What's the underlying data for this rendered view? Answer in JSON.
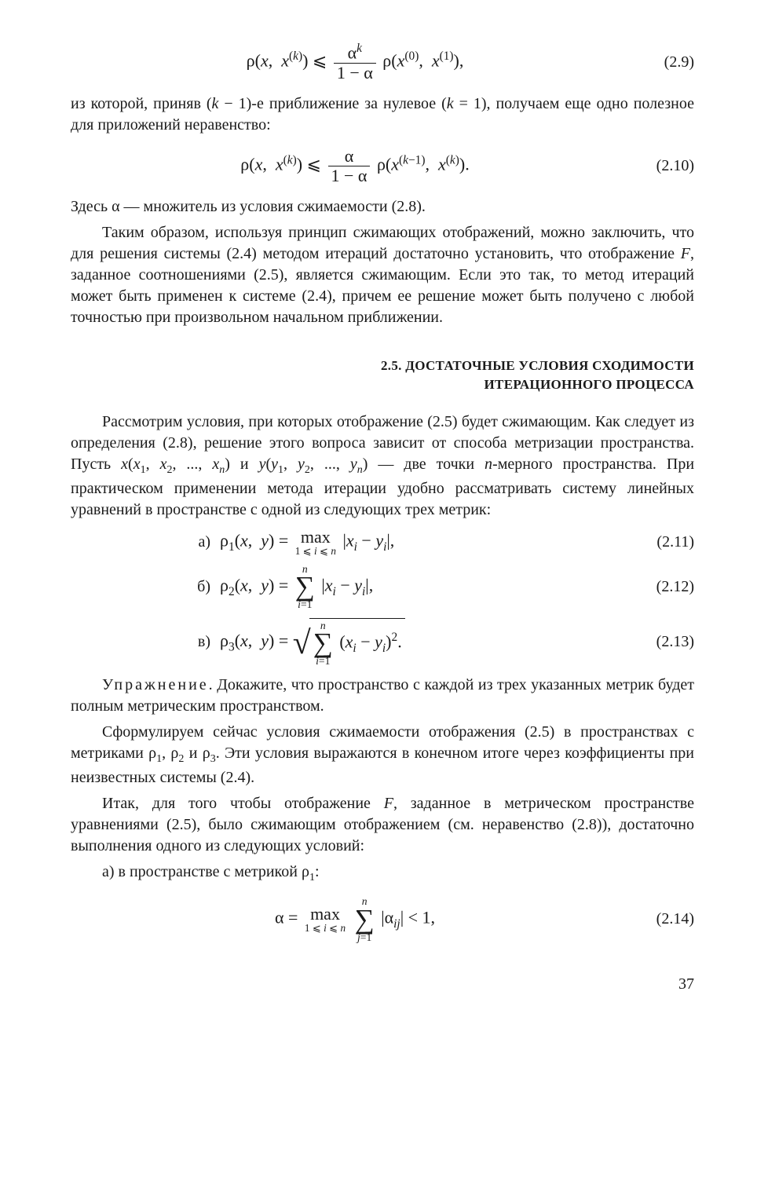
{
  "eq29": {
    "formula_html": "ρ(<span class='italic'>x</span>,&nbsp; <span class='italic'>x</span><span class='sup'>(<span class='italic'>k</span>)</span>) ⩽ <span class='frac'><span class='frac-num'>α<span class='sup italic'>k</span></span><span class='frac-den'>1 − α</span></span> ρ(<span class='italic'>x</span><span class='sup'>(0)</span>,&nbsp; <span class='italic'>x</span><span class='sup'>(1)</span>),",
    "number": "(2.9)"
  },
  "p1": "из которой, приняв (<span class='italic'>k</span> − 1)-е приближение за нулевое (<span class='italic'>k</span> = 1), получаем еще одно полезное для приложений неравенство:",
  "eq210": {
    "formula_html": "ρ(<span class='italic'>x</span>,&nbsp; <span class='italic'>x</span><span class='sup'>(<span class='italic'>k</span>)</span>) ⩽ <span class='frac'><span class='frac-num'>α</span><span class='frac-den'>1 − α</span></span> ρ(<span class='italic'>x</span><span class='sup'>(<span class='italic'>k</span>−1)</span>,&nbsp; <span class='italic'>x</span><span class='sup'>(<span class='italic'>k</span>)</span>).",
    "number": "(2.10)"
  },
  "p2": "Здесь α — множитель из условия сжимаемости (2.8).",
  "p3": "Таким образом, используя принцип сжимающих отображений, можно заключить, что для решения системы (2.4) методом итераций достаточно установить, что отображение <span class='italic'>F</span>, заданное соотношениями (2.5), является сжимающим. Если это так, то метод итераций может быть применен к системе (2.4), причем ее решение может быть получено с любой точностью при произвольном начальном приближении.",
  "heading": "2.5. ДОСТАТОЧНЫЕ УСЛОВИЯ СХОДИМОСТИ<br>ИТЕРАЦИОННОГО ПРОЦЕССА",
  "p4": "Рассмотрим условия, при которых отображение (2.5) будет сжимающим. Как следует из определения (2.8), решение этого вопроса зависит от способа метризации пространства. Пусть <span class='italic'>x</span>(<span class='italic'>x</span><span class='sub'>1</span>, <span class='italic'>x</span><span class='sub'>2</span>, ..., <span class='italic'>x</span><span class='sub italic'>n</span>) и <span class='italic'>y</span>(<span class='italic'>y</span><span class='sub'>1</span>, <span class='italic'>y</span><span class='sub'>2</span>, ..., <span class='italic'>y</span><span class='sub italic'>n</span>) — две точки <span class='italic'>n</span>-мерного пространства. При практическом применении метода итерации удобно рассматривать систему линейных уравнений в пространстве с одной из следующих трех метрик:",
  "metric_a": {
    "label": "а)",
    "formula_html": "ρ<span class='sub'>1</span>(<span class='italic'>x</span>,&nbsp; <span class='italic'>y</span>) = <span class='max-wrap'><span class='max-sym'>max</span><span class='max-sub'>1 ⩽ <span class='italic'>i</span> ⩽ <span class='italic'>n</span></span></span> |<span class='italic'>x</span><span class='sub italic'>i</span> − <span class='italic'>y</span><span class='sub italic'>i</span>|,",
    "number": "(2.11)"
  },
  "metric_b": {
    "label": "б)",
    "formula_html": "ρ<span class='sub'>2</span>(<span class='italic'>x</span>,&nbsp; <span class='italic'>y</span>) = <span class='sum-wrap'><span class='sum-top italic'>n</span><span class='sum-sym'>∑</span><span class='sum-bot'><span class='italic'>i</span>=1</span></span> |<span class='italic'>x</span><span class='sub italic'>i</span> − <span class='italic'>y</span><span class='sub italic'>i</span>|,",
    "number": "(2.12)"
  },
  "metric_c": {
    "label": "в)",
    "formula_html": "ρ<span class='sub'>3</span>(<span class='italic'>x</span>,&nbsp; <span class='italic'>y</span>) = <span class='radical'>√</span><span class='sqrt-wrap'><span class='sum-wrap'><span class='sum-top italic'>n</span><span class='sum-sym'>∑</span><span class='sum-bot'><span class='italic'>i</span>=1</span></span> (<span class='italic'>x</span><span class='sub italic'>i</span> − <span class='italic'>y</span><span class='sub italic'>i</span>)<span class='sup'>2</span>.</span>",
    "number": "(2.13)"
  },
  "p5": "<span class='spaced'>Упражнение</span>. Докажите, что пространство с каждой из трех указанных метрик будет полным метрическим пространством.",
  "p6": "Сформулируем сейчас условия сжимаемости отображения (2.5) в пространствах с метриками ρ<span class='sub'>1</span>, ρ<span class='sub'>2</span> и ρ<span class='sub'>3</span>. Эти условия выражаются в конечном итоге через коэффициенты при неизвестных системы (2.4).",
  "p7": "Итак, для того чтобы отображение <span class='italic'>F</span>, заданное в метрическом пространстве уравнениями (2.5), было сжимающим отображением (см. неравенство (2.8)), достаточно выполнения одного из следующих условий:",
  "p8": "а) в пространстве с метрикой ρ<span class='sub'>1</span>:",
  "eq214": {
    "formula_html": "α = <span class='max-wrap'><span class='max-sym'>max</span><span class='max-sub'>1 ⩽ <span class='italic'>i</span> ⩽ <span class='italic'>n</span></span></span> <span class='sum-wrap'><span class='sum-top italic'>n</span><span class='sum-sym'>∑</span><span class='sum-bot'><span class='italic'>j</span>=1</span></span> |α<span class='sub italic'>ij</span>| &lt; 1,",
    "number": "(2.14)"
  },
  "page_number": "37"
}
